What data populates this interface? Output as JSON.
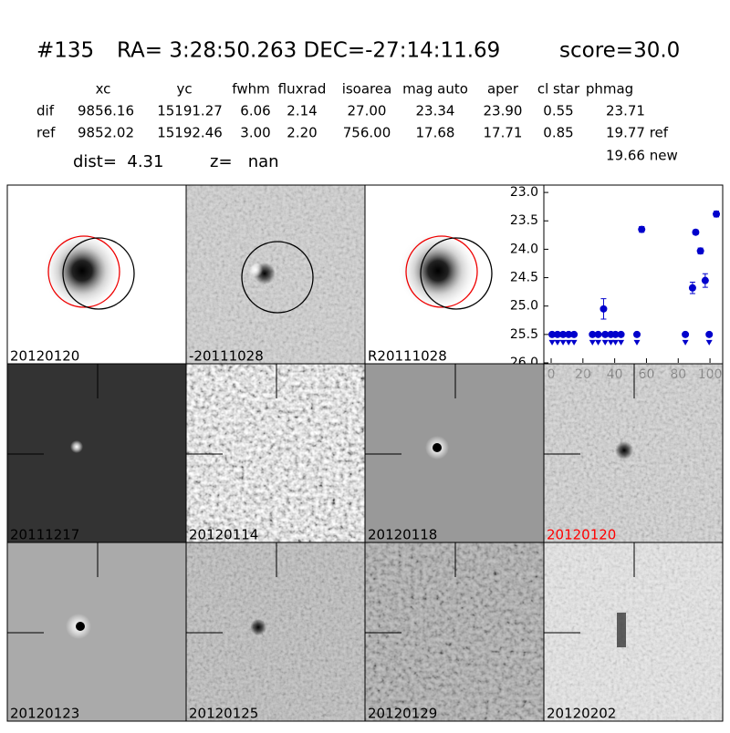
{
  "header": {
    "id": "#135",
    "coords": "RA= 3:28:50.263 DEC=-27:14:11.69",
    "score": "score=30.0"
  },
  "table": {
    "columns": [
      "xc",
      "yc",
      "fwhm",
      "fluxrad",
      "isoarea",
      "mag auto",
      "aper",
      "cl star",
      "phmag"
    ],
    "rows": [
      [
        "dif",
        "9856.16",
        "15191.27",
        "6.06",
        "2.14",
        "27.00",
        "23.34",
        "23.90",
        "0.55",
        "23.71"
      ],
      [
        "ref",
        "9852.02",
        "15192.46",
        "3.00",
        "2.20",
        "756.00",
        "17.68",
        "17.71",
        "0.85",
        "19.77 ref"
      ]
    ]
  },
  "dist": "dist=  4.31",
  "z": "z=   nan",
  "new_mag": "19.66 new",
  "panels": [
    {
      "label": "20120120"
    },
    {
      "label": "-20111028"
    },
    {
      "label": "R20111028"
    },
    {
      "label": "20111217"
    },
    {
      "label": "20120114"
    },
    {
      "label": "20120118"
    },
    {
      "label": "20120120",
      "color": "#ff0000"
    },
    {
      "label": "20120123"
    },
    {
      "label": "20120125"
    },
    {
      "label": "20120129"
    },
    {
      "label": "20120202"
    }
  ],
  "chart_data": {
    "type": "scatter",
    "invert_y": true,
    "xlim": [
      -4.6,
      108
    ],
    "ylim": [
      22.87,
      26.0
    ],
    "xticks": [
      0,
      20,
      40,
      60,
      80,
      100
    ],
    "yticks": [
      {
        "value": 23,
        "label": "23.0"
      },
      {
        "value": 23.5,
        "label": "23.5"
      },
      {
        "value": 24,
        "label": "24.0"
      },
      {
        "value": 24.5,
        "label": "24.5"
      },
      {
        "value": 25,
        "label": "25.0"
      },
      {
        "value": 25.5,
        "label": "25.5"
      },
      {
        "value": 26,
        "label": "26.0"
      }
    ],
    "series": [
      {
        "color": "#0000cc",
        "marker": "point",
        "x": [
          33,
          57,
          89,
          91,
          94,
          97,
          104
        ],
        "values": [
          25.05,
          23.65,
          24.68,
          23.7,
          24.03,
          24.55,
          23.38
        ],
        "errors": [
          0.18,
          0.05,
          0.1,
          0.04,
          0.05,
          0.12,
          0.05
        ]
      },
      {
        "color": "#0000cc",
        "marker": "upper-limit",
        "x": [
          0.6,
          4,
          7.5,
          11,
          14.4,
          26,
          29.6,
          34,
          37.6,
          40.5,
          44,
          54,
          84.5,
          99.5
        ],
        "values": [
          25.5,
          25.5,
          25.5,
          25.5,
          25.5,
          25.5,
          25.5,
          25.5,
          25.5,
          25.5,
          25.5,
          25.5,
          25.5,
          25.5
        ]
      }
    ]
  }
}
